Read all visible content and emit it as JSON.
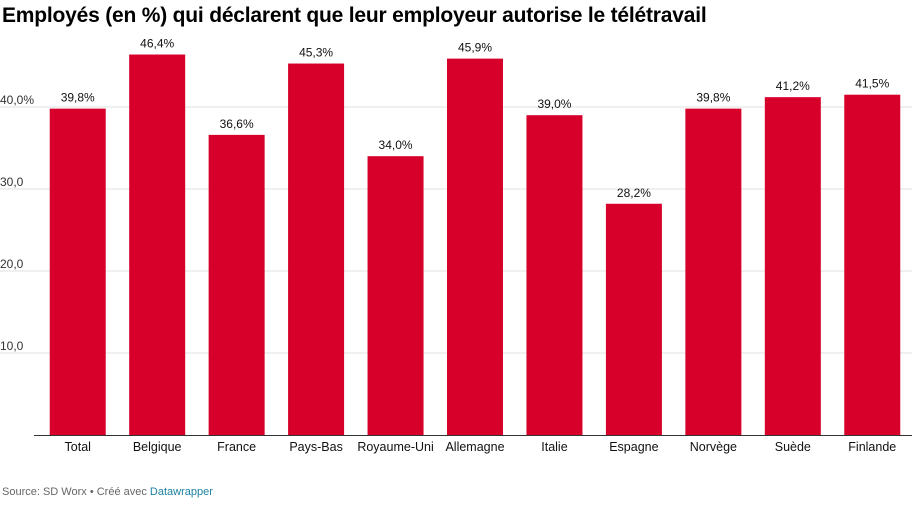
{
  "header": {
    "title": "Employés (en %) qui déclarent que leur employeur autorise le télétravail"
  },
  "footer": {
    "source": "Source: SD Worx • Créé avec ",
    "link": "Datawrapper"
  },
  "chart_data": {
    "type": "bar",
    "title": "Employés (en %) qui déclarent que leur employeur autorise le télétravail",
    "xlabel": "",
    "ylabel": "",
    "categories": [
      "Total",
      "Belgique",
      "France",
      "Pays-Bas",
      "Royaume-Uni",
      "Allemagne",
      "Italie",
      "Espagne",
      "Norvège",
      "Suède",
      "Finlande"
    ],
    "values": [
      39.8,
      46.4,
      36.6,
      45.3,
      34.0,
      45.9,
      39.0,
      28.2,
      39.8,
      41.2,
      41.5
    ],
    "value_labels": [
      "39,8%",
      "46,4%",
      "36,6%",
      "45,3%",
      "34,0%",
      "45,9%",
      "39,0%",
      "28,2%",
      "39,8%",
      "41,2%",
      "41,5%"
    ],
    "ylim": [
      0,
      50
    ],
    "yticks": [
      10,
      20,
      30,
      40
    ],
    "ytick_labels": [
      "10,0",
      "20,0",
      "30,0",
      "40,0%"
    ],
    "grid": true,
    "bar_color": "#d6002a",
    "grid_color": "#e2e2e2",
    "axis_color": "#333333"
  }
}
